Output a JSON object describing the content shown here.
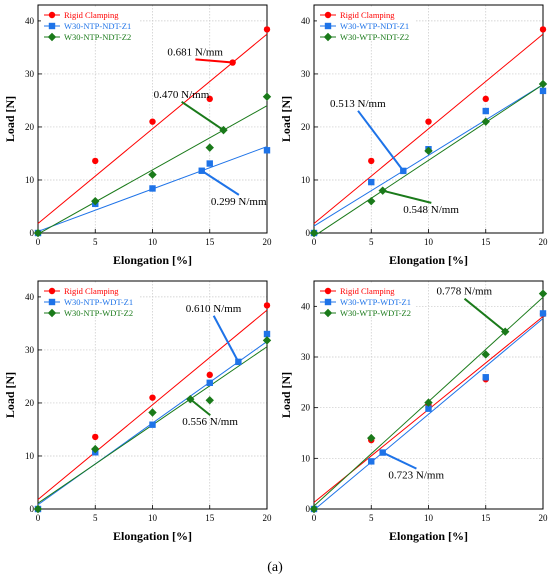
{
  "caption": "(a)",
  "chart_data": [
    {
      "type": "scatter",
      "xlabel": "Elongation [%]",
      "ylabel": "Load [N]",
      "xlim": [
        0,
        20
      ],
      "ylim": [
        0,
        43
      ],
      "xticks": [
        0,
        5,
        10,
        15,
        20
      ],
      "yticks": [
        0,
        10,
        20,
        30,
        40
      ],
      "grid": true,
      "legend": "top-left",
      "series": [
        {
          "name": "Rigid Clamping",
          "color": "#ff0000",
          "marker": "circle",
          "x": [
            0,
            5,
            10,
            15,
            20
          ],
          "y": [
            0,
            13.6,
            21,
            25.3,
            38.4
          ],
          "fit": [
            1.8,
            37.5
          ]
        },
        {
          "name": "W30-NTP-NDT-Z1",
          "color": "#1e73e8",
          "marker": "square",
          "x": [
            0,
            5,
            10,
            15,
            20
          ],
          "y": [
            0,
            5.5,
            8.4,
            13.1,
            15.6
          ],
          "fit": [
            0.3,
            16.3
          ]
        },
        {
          "name": "W30-NTP-NDT-Z2",
          "color": "#1a7a1a",
          "marker": "diamond",
          "x": [
            0,
            5,
            10,
            15,
            20
          ],
          "y": [
            0,
            6,
            11,
            16.1,
            25.7
          ],
          "fit": [
            -0.2,
            24.0
          ]
        }
      ],
      "annotations": [
        {
          "text": "0.681 N/mm",
          "series": 0,
          "at": 17,
          "tx": 11.3,
          "ty": 33.5
        },
        {
          "text": "0.470 N/mm",
          "series": 2,
          "at": 16.2,
          "tx": 10.1,
          "ty": 25.5
        },
        {
          "text": "0.299 N/mm",
          "series": 1,
          "at": 14.3,
          "tx": 15.1,
          "ty": 5.3
        }
      ]
    },
    {
      "type": "scatter",
      "xlabel": "Elongation [%]",
      "ylabel": "Load [N]",
      "xlim": [
        0,
        20
      ],
      "ylim": [
        0,
        43
      ],
      "xticks": [
        0,
        5,
        10,
        15,
        20
      ],
      "yticks": [
        0,
        10,
        20,
        30,
        40
      ],
      "grid": true,
      "legend": "top-left",
      "series": [
        {
          "name": "Rigid Clamping",
          "color": "#ff0000",
          "marker": "circle",
          "x": [
            0,
            5,
            10,
            15,
            20
          ],
          "y": [
            0,
            13.6,
            21,
            25.3,
            38.4
          ],
          "fit": [
            1.8,
            37.5
          ]
        },
        {
          "name": "W30-WTP-NDT-Z1",
          "color": "#1e73e8",
          "marker": "square",
          "x": [
            0,
            5,
            10,
            15,
            20
          ],
          "y": [
            0,
            9.6,
            15.8,
            23,
            26.8
          ],
          "fit": [
            1.3,
            28.0
          ]
        },
        {
          "name": "W30-WTP-NDT-Z2",
          "color": "#1a7a1a",
          "marker": "diamond",
          "x": [
            0,
            5,
            10,
            15,
            20
          ],
          "y": [
            0,
            6,
            15.5,
            21,
            28.1
          ],
          "fit": [
            -0.6,
            28.0
          ]
        }
      ],
      "annotations": [
        {
          "text": "0.513 N/mm",
          "series": 1,
          "at": 7.8,
          "tx": 1.4,
          "ty": 23.8
        },
        {
          "text": "0.548 N/mm",
          "series": 2,
          "at": 6,
          "tx": 7.8,
          "ty": 3.8
        }
      ]
    },
    {
      "type": "scatter",
      "xlabel": "Elongation [%]",
      "ylabel": "Load [N]",
      "xlim": [
        0,
        20
      ],
      "ylim": [
        0,
        43
      ],
      "xticks": [
        0,
        5,
        10,
        15,
        20
      ],
      "yticks": [
        0,
        10,
        20,
        30,
        40
      ],
      "grid": true,
      "legend": "top-left",
      "series": [
        {
          "name": "Rigid Clamping",
          "color": "#ff0000",
          "marker": "circle",
          "x": [
            0,
            5,
            10,
            15,
            20
          ],
          "y": [
            0,
            13.6,
            21,
            25.3,
            38.4
          ],
          "fit": [
            1.8,
            37.5
          ]
        },
        {
          "name": "W30-NTP-WDT-Z1",
          "color": "#1e73e8",
          "marker": "square",
          "x": [
            0,
            5,
            10,
            15,
            20
          ],
          "y": [
            0,
            10.7,
            15.9,
            23.8,
            33
          ],
          "fit": [
            0.8,
            31.6
          ]
        },
        {
          "name": "W30-NTP-WDT-Z2",
          "color": "#1a7a1a",
          "marker": "diamond",
          "x": [
            0,
            5,
            10,
            15,
            20
          ],
          "y": [
            0,
            11.3,
            18.2,
            20.5,
            31.8
          ],
          "fit": [
            1.1,
            30.6
          ]
        }
      ],
      "annotations": [
        {
          "text": "0.610 N/mm",
          "series": 1,
          "at": 17.5,
          "tx": 12.9,
          "ty": 37.2
        },
        {
          "text": "0.556 N/mm",
          "series": 2,
          "at": 13.3,
          "tx": 12.6,
          "ty": 15.8
        }
      ]
    },
    {
      "type": "scatter",
      "xlabel": "Elongation [%]",
      "ylabel": "Load [N]",
      "xlim": [
        0,
        20
      ],
      "ylim": [
        0,
        45
      ],
      "xticks": [
        0,
        5,
        10,
        15,
        20
      ],
      "yticks": [
        0,
        10,
        20,
        30,
        40
      ],
      "grid": true,
      "legend": "top-left",
      "series": [
        {
          "name": "Rigid Clamping",
          "color": "#ff0000",
          "marker": "circle",
          "x": [
            0,
            5,
            10,
            15,
            20
          ],
          "y": [
            0,
            13.6,
            20.5,
            25.6,
            38.5
          ],
          "fit": [
            1.3,
            38.0
          ]
        },
        {
          "name": "W30-WTP-WDT-Z1",
          "color": "#1e73e8",
          "marker": "square",
          "x": [
            0,
            5,
            10,
            15,
            20
          ],
          "y": [
            0,
            9.4,
            19.8,
            26,
            38.6
          ],
          "fit": [
            -0.2,
            37.6
          ]
        },
        {
          "name": "W30-WTP-WDT-Z2",
          "color": "#1a7a1a",
          "marker": "diamond",
          "x": [
            0,
            5,
            10,
            15,
            20
          ],
          "y": [
            0,
            14,
            21,
            30.5,
            42.5
          ],
          "fit": [
            0.6,
            41.8
          ]
        }
      ],
      "annotations": [
        {
          "text": "0.778 N/mm",
          "series": 2,
          "at": 16.7,
          "tx": 10.7,
          "ty": 42.3
        },
        {
          "text": "0.723 N/mm",
          "series": 1,
          "at": 6,
          "tx": 6.5,
          "ty": 6.0
        }
      ]
    }
  ]
}
